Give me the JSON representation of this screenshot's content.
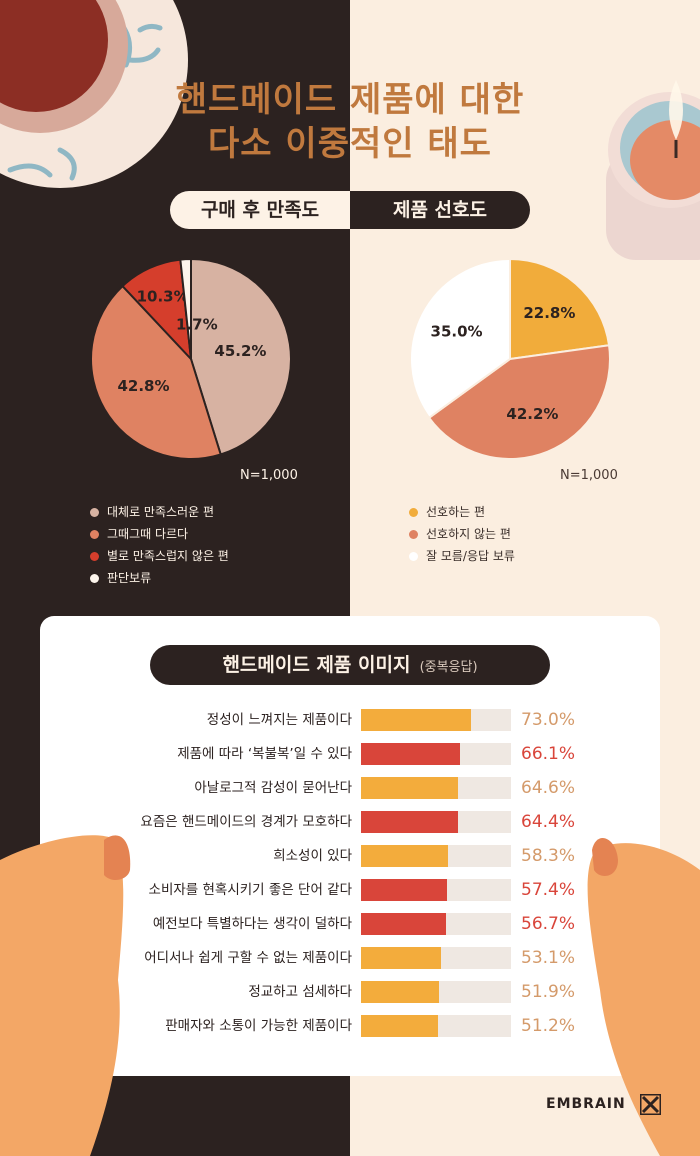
{
  "title": {
    "line1": "핸드메이드 제품에 대한",
    "line2": "다소 이중적인 태도"
  },
  "tabs": {
    "left": "구매 후 만족도",
    "right": "제품 선호도"
  },
  "colors": {
    "dark_bg": "#2c2220",
    "light_bg": "#fbeee0",
    "title": "#c0793e",
    "bar_yellow": "#f3ac3c",
    "bar_red": "#d9453a",
    "value_tan": "#d49a6a",
    "value_red": "#d9453a"
  },
  "chart_data": [
    {
      "type": "pie",
      "title": "구매 후 만족도",
      "note": "N=1,000",
      "slices": [
        {
          "label": "대체로 만족스러운 편",
          "value": 45.2,
          "display": "45.2%",
          "color": "#d7b2a2"
        },
        {
          "label": "그때그때 다르다",
          "value": 42.8,
          "display": "42.8%",
          "color": "#df8262"
        },
        {
          "label": "별로 만족스럽지 않은 편",
          "value": 10.3,
          "display": "10.3%",
          "color": "#d53e2c"
        },
        {
          "label": "판단보류",
          "value": 1.7,
          "display": "1.7%",
          "color": "#fdf5ec"
        }
      ]
    },
    {
      "type": "pie",
      "title": "제품 선호도",
      "note": "N=1,000",
      "slices": [
        {
          "label": "선호하는 편",
          "value": 22.8,
          "display": "22.8%",
          "color": "#f1ac3b"
        },
        {
          "label": "선호하지 않는 편",
          "value": 42.2,
          "display": "42.2%",
          "color": "#df8262"
        },
        {
          "label": "잘 모름/응답 보류",
          "value": 35.0,
          "display": "35.0%",
          "color": "#ffffff"
        }
      ]
    },
    {
      "type": "bar",
      "title": "핸드메이드 제품 이미지",
      "subtitle": "(중복응답)",
      "ylim": [
        0,
        100
      ],
      "categories": [
        "정성이 느껴지는 제품이다",
        "제품에 따라 ‘복불복’일 수 있다",
        "아날로그적 감성이 묻어난다",
        "요즘은 핸드메이드의 경계가 모호하다",
        "희소성이 있다",
        "소비자를 현혹시키기 좋은 단어 같다",
        "예전보다 특별하다는 생각이 덜하다",
        "어디서나 쉽게 구할 수 없는 제품이다",
        "정교하고 섬세하다",
        "판매자와 소통이 가능한 제품이다"
      ],
      "values": [
        73.0,
        66.1,
        64.6,
        64.4,
        58.3,
        57.4,
        56.7,
        53.1,
        51.9,
        51.2
      ],
      "value_labels": [
        "73.0%",
        "66.1%",
        "64.6%",
        "64.4%",
        "58.3%",
        "57.4%",
        "56.7%",
        "53.1%",
        "51.9%",
        "51.2%"
      ],
      "bar_colors": [
        "yellow",
        "red",
        "yellow",
        "red",
        "yellow",
        "red",
        "red",
        "yellow",
        "yellow",
        "yellow"
      ]
    }
  ],
  "brand": {
    "name": "EMBRAIN"
  }
}
